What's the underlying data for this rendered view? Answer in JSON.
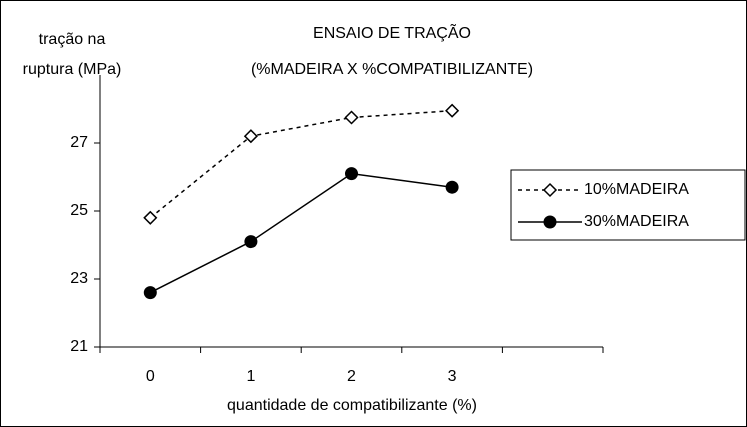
{
  "chart_data": {
    "type": "line",
    "title": [
      "ENSAIO DE TRAÇÃO",
      "(%MADEIRA X %COMPATIBILIZANTE)"
    ],
    "y_label": [
      "tração na",
      "ruptura (MPa)"
    ],
    "x_label": "quantidade de compatibilizante (%)",
    "categories": [
      "0",
      "1",
      "2",
      "3",
      null
    ],
    "series": [
      {
        "name": "10%MADEIRA",
        "color": "#000000",
        "dash": true,
        "marker": "diamond",
        "values": [
          24.8,
          27.2,
          27.75,
          27.95,
          null
        ]
      },
      {
        "name": "30%MADEIRA",
        "color": "#000000",
        "dash": false,
        "marker": "circle",
        "values": [
          22.6,
          24.1,
          26.1,
          25.7,
          null
        ]
      }
    ],
    "ylim": [
      21,
      29
    ],
    "yticks": [
      21,
      23,
      25,
      27
    ],
    "grid": false,
    "legend": "right"
  }
}
